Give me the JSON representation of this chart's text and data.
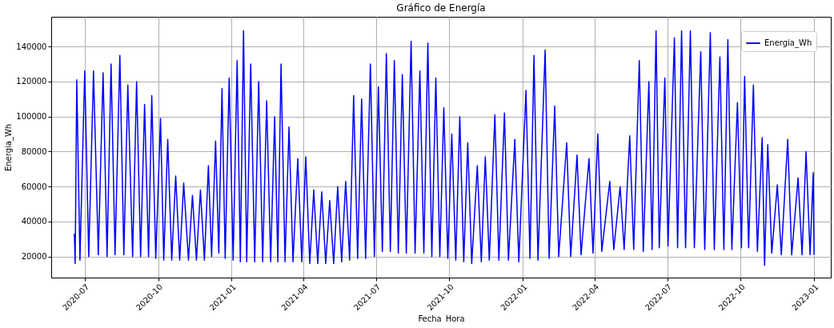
{
  "chart_data": {
    "type": "line",
    "title": "Gráfico de Energía",
    "xlabel": "Fecha_Hora",
    "ylabel": "Energia_Wh",
    "x": [
      "2020-06-18",
      "2020-06-19",
      "2020-06-21",
      "2020-06-25",
      "2020-07-01",
      "2020-07-06",
      "2020-07-12",
      "2020-07-18",
      "2020-07-24",
      "2020-07-29",
      "2020-08-03",
      "2020-08-08",
      "2020-08-14",
      "2020-08-19",
      "2020-08-24",
      "2020-08-30",
      "2020-09-04",
      "2020-09-09",
      "2020-09-14",
      "2020-09-19",
      "2020-09-23",
      "2020-09-28",
      "2020-10-04",
      "2020-10-08",
      "2020-10-13",
      "2020-10-18",
      "2020-10-23",
      "2020-10-28",
      "2020-11-02",
      "2020-11-08",
      "2020-11-13",
      "2020-11-18",
      "2020-11-23",
      "2020-11-28",
      "2020-12-03",
      "2020-12-07",
      "2020-12-12",
      "2020-12-16",
      "2020-12-20",
      "2020-12-24",
      "2020-12-29",
      "2021-01-03",
      "2021-01-08",
      "2021-01-12",
      "2021-01-16",
      "2021-01-20",
      "2021-01-25",
      "2021-01-30",
      "2021-02-04",
      "2021-02-09",
      "2021-02-14",
      "2021-02-19",
      "2021-02-24",
      "2021-02-28",
      "2021-03-04",
      "2021-03-09",
      "2021-03-14",
      "2021-03-19",
      "2021-03-25",
      "2021-03-30",
      "2021-04-04",
      "2021-04-09",
      "2021-04-14",
      "2021-04-19",
      "2021-04-24",
      "2021-04-29",
      "2021-05-04",
      "2021-05-09",
      "2021-05-14",
      "2021-05-19",
      "2021-05-24",
      "2021-05-29",
      "2021-06-03",
      "2021-06-08",
      "2021-06-13",
      "2021-06-18",
      "2021-06-24",
      "2021-06-29",
      "2021-07-04",
      "2021-07-09",
      "2021-07-14",
      "2021-07-19",
      "2021-07-24",
      "2021-07-29",
      "2021-08-03",
      "2021-08-08",
      "2021-08-14",
      "2021-08-19",
      "2021-08-25",
      "2021-08-30",
      "2021-09-04",
      "2021-09-09",
      "2021-09-14",
      "2021-09-19",
      "2021-09-24",
      "2021-09-29",
      "2021-10-04",
      "2021-10-09",
      "2021-10-14",
      "2021-10-19",
      "2021-10-24",
      "2021-10-29",
      "2021-11-05",
      "2021-11-10",
      "2021-11-15",
      "2021-11-20",
      "2021-11-27",
      "2021-12-02",
      "2021-12-09",
      "2021-12-14",
      "2021-12-22",
      "2021-12-27",
      "2022-01-05",
      "2022-01-10",
      "2022-01-15",
      "2022-01-20",
      "2022-01-29",
      "2022-02-03",
      "2022-02-10",
      "2022-02-15",
      "2022-02-25",
      "2022-03-02",
      "2022-03-10",
      "2022-03-15",
      "2022-03-25",
      "2022-03-30",
      "2022-04-05",
      "2022-04-10",
      "2022-04-20",
      "2022-04-25",
      "2022-05-03",
      "2022-05-08",
      "2022-05-15",
      "2022-05-20",
      "2022-05-27",
      "2022-06-01",
      "2022-06-08",
      "2022-06-12",
      "2022-06-17",
      "2022-06-21",
      "2022-06-28",
      "2022-07-02",
      "2022-07-10",
      "2022-07-14",
      "2022-07-19",
      "2022-07-24",
      "2022-07-30",
      "2022-08-04",
      "2022-08-12",
      "2022-08-17",
      "2022-08-24",
      "2022-08-29",
      "2022-09-05",
      "2022-09-10",
      "2022-09-15",
      "2022-09-20",
      "2022-09-27",
      "2022-10-02",
      "2022-10-06",
      "2022-10-11",
      "2022-10-17",
      "2022-10-22",
      "2022-10-28",
      "2022-10-31",
      "2022-11-04",
      "2022-11-09",
      "2022-11-16",
      "2022-11-21",
      "2022-11-29",
      "2022-12-04",
      "2022-12-12",
      "2022-12-17",
      "2022-12-22",
      "2022-12-27",
      "2022-12-31",
      "2023-01-01"
    ],
    "series": [
      {
        "name": "Energia_Wh",
        "color": "#0000ff",
        "values": [
          33000,
          16000,
          121000,
          18000,
          126000,
          20000,
          126000,
          21000,
          125000,
          20000,
          130000,
          21000,
          135000,
          21000,
          118000,
          20000,
          120000,
          20000,
          107000,
          20000,
          112000,
          19000,
          99000,
          18000,
          87000,
          18000,
          66000,
          18000,
          62000,
          18000,
          55000,
          18000,
          58000,
          18000,
          72000,
          20000,
          86000,
          22000,
          116000,
          19000,
          122000,
          18000,
          132000,
          17000,
          149000,
          17000,
          130000,
          17000,
          120000,
          17000,
          109000,
          17000,
          100000,
          17000,
          130000,
          17000,
          94000,
          17000,
          76000,
          17000,
          77000,
          16000,
          58000,
          16000,
          57000,
          16000,
          52000,
          16000,
          60000,
          17000,
          63000,
          18000,
          112000,
          19000,
          110000,
          19000,
          130000,
          20000,
          117000,
          23000,
          136000,
          23000,
          132000,
          22000,
          124000,
          22000,
          143000,
          22000,
          126000,
          22000,
          142000,
          20000,
          122000,
          20000,
          105000,
          19000,
          90000,
          18000,
          100000,
          17000,
          85000,
          16000,
          72000,
          17000,
          77000,
          18000,
          101000,
          18000,
          102000,
          18000,
          87000,
          17000,
          115000,
          19000,
          135000,
          18000,
          138000,
          19000,
          106000,
          20000,
          85000,
          20000,
          78000,
          21000,
          76000,
          22000,
          90000,
          23000,
          63000,
          24000,
          60000,
          24000,
          89000,
          24000,
          132000,
          23000,
          120000,
          24000,
          149000,
          25000,
          122000,
          26000,
          145000,
          25000,
          149000,
          25000,
          149000,
          25000,
          137000,
          24000,
          148000,
          24000,
          134000,
          24000,
          144000,
          24000,
          108000,
          25000,
          123000,
          25000,
          118000,
          23000,
          88000,
          15000,
          84000,
          22000,
          61000,
          21000,
          87000,
          21000,
          65000,
          21000,
          80000,
          21000,
          68000,
          21000
        ]
      }
    ],
    "xlim": [
      "2020-05-20",
      "2023-01-22"
    ],
    "xticks": [
      "2020-07",
      "2020-10",
      "2021-01",
      "2021-04",
      "2021-07",
      "2021-10",
      "2022-01",
      "2022-04",
      "2022-07",
      "2022-10",
      "2023-01"
    ],
    "ylim": [
      8000,
      157000
    ],
    "yticks": [
      20000,
      40000,
      60000,
      80000,
      100000,
      120000,
      140000
    ],
    "grid": true,
    "legend": "top right",
    "line_style": "solid"
  }
}
